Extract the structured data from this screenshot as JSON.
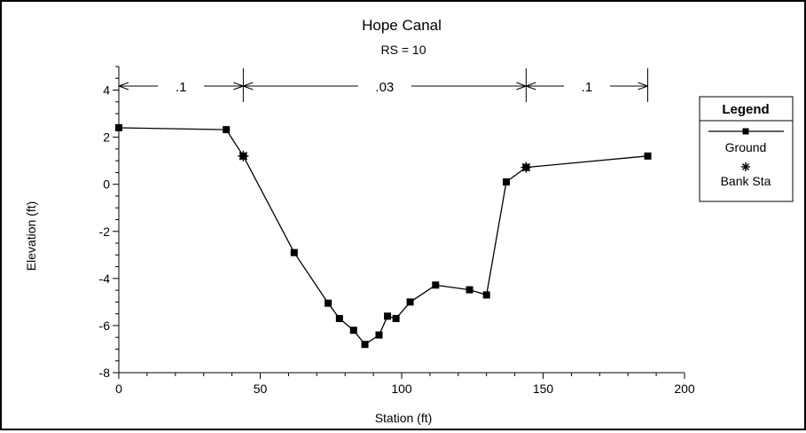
{
  "chart_data": {
    "type": "line",
    "title": "Hope Canal",
    "subtitle": "RS = 10",
    "xlabel": "Station (ft)",
    "ylabel": "Elevation (ft)",
    "xlim": [
      0,
      200
    ],
    "ylim": [
      -8,
      5
    ],
    "x_ticks": [
      0,
      50,
      100,
      150,
      200
    ],
    "y_ticks": [
      4,
      2,
      0,
      -2,
      -4,
      -6,
      -8
    ],
    "grid": false,
    "legend_position": "right",
    "legend_title": "Legend",
    "series": [
      {
        "name": "Ground",
        "marker": "square",
        "color": "#000000",
        "points": [
          [
            0,
            2.4
          ],
          [
            38,
            2.32
          ],
          [
            44,
            1.2
          ],
          [
            62,
            -2.9
          ],
          [
            74,
            -5.05
          ],
          [
            78,
            -5.7
          ],
          [
            83,
            -6.2
          ],
          [
            87,
            -6.8
          ],
          [
            92,
            -6.4
          ],
          [
            95,
            -5.6
          ],
          [
            98,
            -5.7
          ],
          [
            103,
            -5.0
          ],
          [
            112,
            -4.28
          ],
          [
            124,
            -4.48
          ],
          [
            130,
            -4.7
          ],
          [
            137,
            0.1
          ],
          [
            144,
            0.72
          ],
          [
            187,
            1.2
          ]
        ]
      },
      {
        "name": "Bank Sta",
        "marker": "asterisk",
        "color": "#000000",
        "points": [
          [
            44,
            1.2
          ],
          [
            144,
            0.72
          ]
        ]
      }
    ],
    "manning_n": {
      "boundaries": [
        0,
        44,
        144,
        187
      ],
      "labels": [
        ".1",
        ".03",
        ".1"
      ]
    }
  }
}
